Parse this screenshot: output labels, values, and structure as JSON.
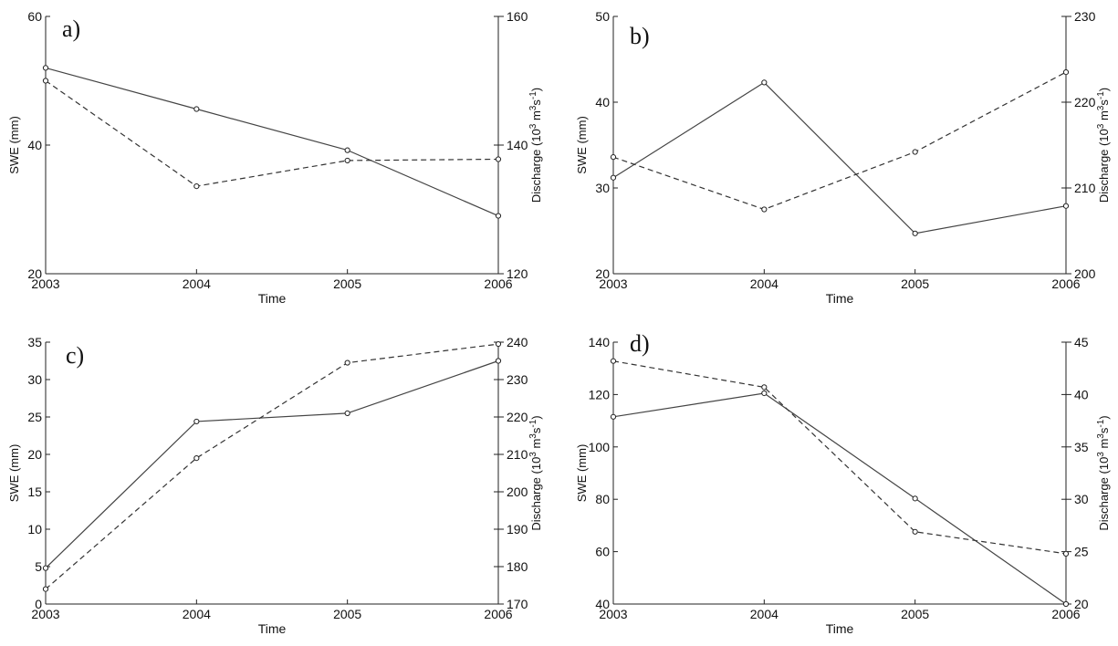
{
  "chart_data": [
    {
      "type": "line",
      "panel_label": "a)",
      "x": [
        2003,
        2004,
        2005,
        2006
      ],
      "x_tick_labels": [
        "2003",
        "2004",
        "2005",
        "2006"
      ],
      "xlabel": "Time",
      "ylabel_left": "SWE (mm)",
      "ylabel_right": "Discharge (10³ m³s⁻¹)",
      "ylim_left": [
        20,
        60
      ],
      "yticks_left": [
        20,
        40,
        60
      ],
      "ylim_right": [
        120,
        160
      ],
      "yticks_right": [
        120,
        140,
        160
      ],
      "grid": false,
      "series": [
        {
          "axis": "left",
          "line_style": "solid",
          "values": [
            52.0,
            45.6,
            39.2,
            29.0
          ]
        },
        {
          "axis": "right",
          "line_style": "dashed",
          "values": [
            150.0,
            133.6,
            137.6,
            137.8
          ]
        }
      ]
    },
    {
      "type": "line",
      "panel_label": "b)",
      "x": [
        2003,
        2004,
        2005,
        2006
      ],
      "x_tick_labels": [
        "2003",
        "2004",
        "2005",
        "2006"
      ],
      "xlabel": "Time",
      "ylabel_left": "SWE (mm)",
      "ylabel_right": "Discharge (10³ m³s⁻¹)",
      "ylim_left": [
        20,
        50
      ],
      "yticks_left": [
        20,
        30,
        40,
        50
      ],
      "ylim_right": [
        200,
        230
      ],
      "yticks_right": [
        200,
        210,
        220,
        230
      ],
      "grid": false,
      "series": [
        {
          "axis": "left",
          "line_style": "solid",
          "values": [
            31.2,
            42.3,
            24.7,
            27.9
          ]
        },
        {
          "axis": "right",
          "line_style": "dashed",
          "values": [
            213.6,
            207.5,
            214.2,
            223.5
          ]
        }
      ]
    },
    {
      "type": "line",
      "panel_label": "c)",
      "x": [
        2003,
        2004,
        2005,
        2006
      ],
      "x_tick_labels": [
        "2003",
        "2004",
        "2005",
        "2006"
      ],
      "xlabel": "Time",
      "ylabel_left": "SWE (mm)",
      "ylabel_right": "Discharge (10³ m³s⁻¹)",
      "ylim_left": [
        0,
        35
      ],
      "yticks_left": [
        0,
        5,
        10,
        15,
        20,
        25,
        30,
        35
      ],
      "ylim_right": [
        170,
        240
      ],
      "yticks_right": [
        170,
        180,
        190,
        200,
        210,
        220,
        230,
        240
      ],
      "grid": false,
      "series": [
        {
          "axis": "left",
          "line_style": "solid",
          "values": [
            4.8,
            24.4,
            25.5,
            32.5
          ]
        },
        {
          "axis": "right",
          "line_style": "dashed",
          "values": [
            174.0,
            209.0,
            234.5,
            239.5
          ]
        }
      ]
    },
    {
      "type": "line",
      "panel_label": "d)",
      "x": [
        2003,
        2004,
        2005,
        2006
      ],
      "x_tick_labels": [
        "2003",
        "2004",
        "2005",
        "2006"
      ],
      "xlabel": "Time",
      "ylabel_left": "SWE (mm)",
      "ylabel_right": "Discharge (10³ m³s⁻¹)",
      "ylim_left": [
        40,
        140
      ],
      "yticks_left": [
        40,
        60,
        80,
        100,
        120,
        140
      ],
      "ylim_right": [
        20,
        45
      ],
      "yticks_right": [
        20,
        25,
        30,
        35,
        40,
        45
      ],
      "grid": false,
      "series": [
        {
          "axis": "left",
          "line_style": "solid",
          "values": [
            111.5,
            120.5,
            80.3,
            40.0
          ]
        },
        {
          "axis": "right",
          "line_style": "dashed",
          "values": [
            43.2,
            40.7,
            26.9,
            24.8
          ]
        }
      ]
    }
  ]
}
